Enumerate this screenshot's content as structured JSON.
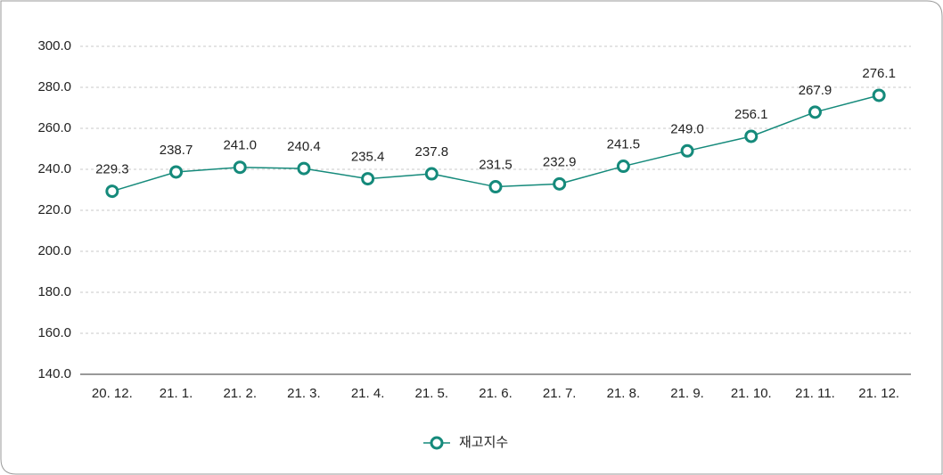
{
  "chart_data": {
    "type": "line",
    "categories": [
      "20. 12.",
      "21. 1.",
      "21. 2.",
      "21. 3.",
      "21. 4.",
      "21. 5.",
      "21. 6.",
      "21. 7.",
      "21. 8.",
      "21. 9.",
      "21. 10.",
      "21. 11.",
      "21. 12."
    ],
    "series": [
      {
        "name": "재고지수",
        "color": "#158a7b",
        "values": [
          229.3,
          238.7,
          241.0,
          240.4,
          235.4,
          237.8,
          231.5,
          232.9,
          241.5,
          249.0,
          256.1,
          267.9,
          276.1
        ],
        "value_labels": [
          "229.3",
          "238.7",
          "241.0",
          "240.4",
          "235.4",
          "237.8",
          "231.5",
          "232.9",
          "241.5",
          "249.0",
          "256.1",
          "267.9",
          "276.1"
        ]
      }
    ],
    "ylim": [
      140,
      300
    ],
    "yticks": [
      {
        "value": 140,
        "label": "140.0"
      },
      {
        "value": 160,
        "label": "160.0"
      },
      {
        "value": 180,
        "label": "180.0"
      },
      {
        "value": 200,
        "label": "200.0"
      },
      {
        "value": 220,
        "label": "220.0"
      },
      {
        "value": 240,
        "label": "240.0"
      },
      {
        "value": 260,
        "label": "260.0"
      },
      {
        "value": 280,
        "label": "280.0"
      },
      {
        "value": 300,
        "label": "300.0"
      }
    ],
    "grid": true,
    "legend": "bottom"
  }
}
